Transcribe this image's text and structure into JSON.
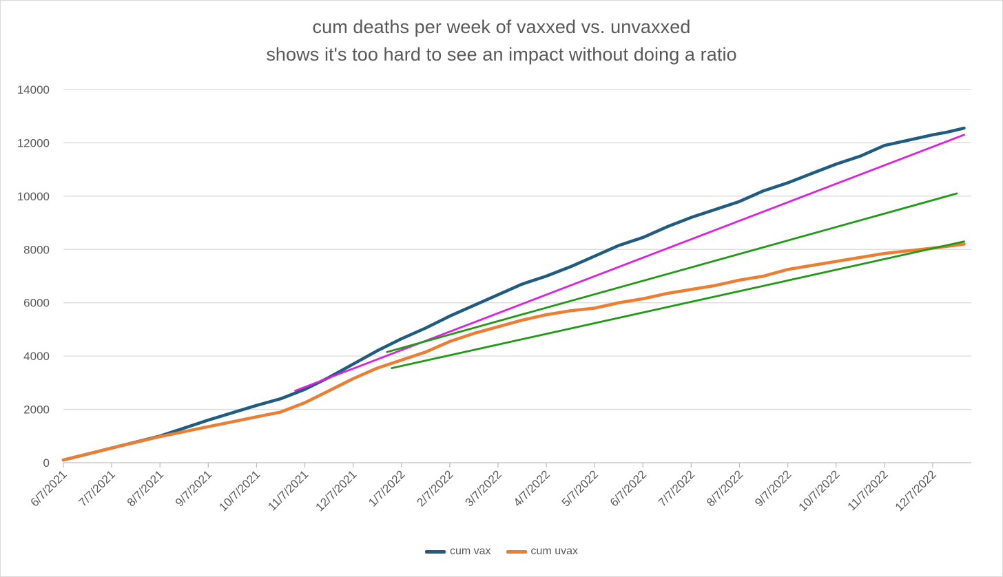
{
  "chart_data": {
    "type": "line",
    "title_line1": "cum deaths per week of vaxxed vs. unvaxxed",
    "title_line2": "shows it's too hard to see an impact without doing a ratio",
    "xlabel": "",
    "ylabel": "",
    "ylim": [
      0,
      14000
    ],
    "yticks": [
      "0",
      "2000",
      "4000",
      "6000",
      "8000",
      "10000",
      "12000",
      "14000"
    ],
    "xticks": [
      "6/7/2021",
      "7/7/2021",
      "8/7/2021",
      "9/7/2021",
      "10/7/2021",
      "11/7/2021",
      "12/7/2021",
      "1/7/2022",
      "2/7/2022",
      "3/7/2022",
      "4/7/2022",
      "5/7/2022",
      "6/7/2022",
      "7/7/2022",
      "8/7/2022",
      "9/7/2022",
      "10/7/2022",
      "11/7/2022",
      "12/7/2022"
    ],
    "xlim_months": [
      0,
      18.8
    ],
    "legend_position": "bottom",
    "series": [
      {
        "name": "cum vax",
        "color": "#1f5c7f",
        "x": [
          0,
          1,
          2,
          3,
          4,
          4.5,
          5,
          5.5,
          6,
          6.5,
          7,
          7.5,
          8,
          8.5,
          9,
          9.5,
          10,
          10.5,
          11,
          11.5,
          12,
          12.5,
          13,
          13.5,
          14,
          14.5,
          15,
          15.5,
          16,
          16.5,
          17,
          17.5,
          18,
          18.3,
          18.65
        ],
        "values": [
          100,
          550,
          1000,
          1600,
          2150,
          2400,
          2750,
          3200,
          3700,
          4200,
          4650,
          5050,
          5500,
          5900,
          6300,
          6700,
          7000,
          7350,
          7750,
          8150,
          8450,
          8850,
          9200,
          9500,
          9800,
          10200,
          10500,
          10850,
          11200,
          11500,
          11900,
          12100,
          12300,
          12400,
          12550
        ]
      },
      {
        "name": "cum uvax",
        "color": "#ed7d31",
        "x": [
          0,
          1,
          2,
          3,
          4,
          4.5,
          5,
          5.5,
          6,
          6.5,
          7,
          7.5,
          8,
          8.5,
          9,
          9.5,
          10,
          10.5,
          11,
          11.5,
          12,
          12.5,
          13,
          13.5,
          14,
          14.5,
          15,
          15.5,
          16,
          16.5,
          17,
          17.5,
          18,
          18.65
        ],
        "values": [
          100,
          550,
          980,
          1350,
          1720,
          1900,
          2250,
          2700,
          3150,
          3550,
          3850,
          4150,
          4550,
          4850,
          5100,
          5350,
          5550,
          5700,
          5800,
          6000,
          6150,
          6350,
          6500,
          6650,
          6850,
          7000,
          7250,
          7400,
          7550,
          7700,
          7850,
          7950,
          8050,
          8200
        ]
      }
    ],
    "trendlines": [
      {
        "name": "trend-magenta",
        "color": "#e020e0",
        "x": [
          4.8,
          18.65
        ],
        "values": [
          2700,
          12300
        ]
      },
      {
        "name": "trend-green-upper",
        "color": "#1f9a14",
        "x": [
          6.7,
          18.5
        ],
        "values": [
          4150,
          10100
        ]
      },
      {
        "name": "trend-green-lower",
        "color": "#1f9a14",
        "x": [
          6.8,
          18.65
        ],
        "values": [
          3550,
          8300
        ]
      }
    ]
  }
}
